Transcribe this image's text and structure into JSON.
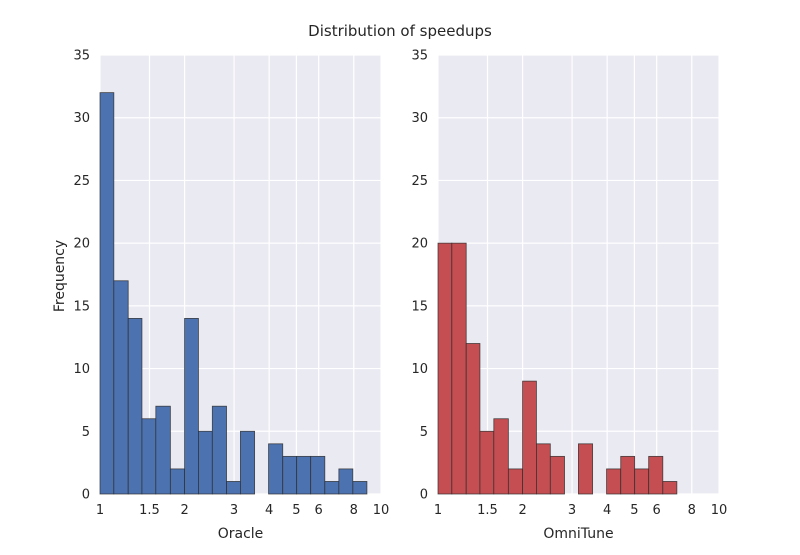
{
  "chart_data": {
    "type": "histogram",
    "title": "Distribution of speedups",
    "ylabel": "Frequency",
    "background": "#eaeaf2",
    "grid": true,
    "x_scale": "log",
    "xlim": [
      1,
      10
    ],
    "ylim": [
      0,
      35
    ],
    "y_ticks": [
      "0",
      "5",
      "10",
      "15",
      "20",
      "25",
      "30",
      "35"
    ],
    "x_ticks": [
      {
        "value": 1,
        "label": "1"
      },
      {
        "value": 1.5,
        "label": "1.5"
      },
      {
        "value": 2,
        "label": "2"
      },
      {
        "value": 3,
        "label": "3"
      },
      {
        "value": 4,
        "label": "4"
      },
      {
        "value": 5,
        "label": "5"
      },
      {
        "value": 6,
        "label": "6"
      },
      {
        "value": 8,
        "label": "8"
      },
      {
        "value": 10,
        "label": "10"
      }
    ],
    "panels": [
      {
        "xlabel": "Oracle",
        "color": "#4c72b0",
        "bins": [
          {
            "x0": 1.0,
            "x1": 1.12,
            "count": 32
          },
          {
            "x0": 1.12,
            "x1": 1.26,
            "count": 17
          },
          {
            "x0": 1.26,
            "x1": 1.41,
            "count": 14
          },
          {
            "x0": 1.41,
            "x1": 1.58,
            "count": 6
          },
          {
            "x0": 1.58,
            "x1": 1.78,
            "count": 7
          },
          {
            "x0": 1.78,
            "x1": 2.0,
            "count": 2
          },
          {
            "x0": 2.0,
            "x1": 2.24,
            "count": 14
          },
          {
            "x0": 2.24,
            "x1": 2.51,
            "count": 5
          },
          {
            "x0": 2.51,
            "x1": 2.82,
            "count": 7
          },
          {
            "x0": 2.82,
            "x1": 3.16,
            "count": 1
          },
          {
            "x0": 3.16,
            "x1": 3.55,
            "count": 5
          },
          {
            "x0": 3.98,
            "x1": 4.47,
            "count": 4
          },
          {
            "x0": 4.47,
            "x1": 5.01,
            "count": 3
          },
          {
            "x0": 5.01,
            "x1": 5.62,
            "count": 3
          },
          {
            "x0": 5.62,
            "x1": 6.31,
            "count": 3
          },
          {
            "x0": 6.31,
            "x1": 7.08,
            "count": 1
          },
          {
            "x0": 7.08,
            "x1": 7.94,
            "count": 2
          },
          {
            "x0": 7.94,
            "x1": 8.91,
            "count": 1
          }
        ]
      },
      {
        "xlabel": "OmniTune",
        "color": "#c44e52",
        "bins": [
          {
            "x0": 1.0,
            "x1": 1.12,
            "count": 20
          },
          {
            "x0": 1.12,
            "x1": 1.26,
            "count": 20
          },
          {
            "x0": 1.26,
            "x1": 1.41,
            "count": 12
          },
          {
            "x0": 1.41,
            "x1": 1.58,
            "count": 5
          },
          {
            "x0": 1.58,
            "x1": 1.78,
            "count": 6
          },
          {
            "x0": 1.78,
            "x1": 2.0,
            "count": 2
          },
          {
            "x0": 2.0,
            "x1": 2.24,
            "count": 9
          },
          {
            "x0": 2.24,
            "x1": 2.51,
            "count": 4
          },
          {
            "x0": 2.51,
            "x1": 2.82,
            "count": 3
          },
          {
            "x0": 3.16,
            "x1": 3.55,
            "count": 4
          },
          {
            "x0": 3.98,
            "x1": 4.47,
            "count": 2
          },
          {
            "x0": 4.47,
            "x1": 5.01,
            "count": 3
          },
          {
            "x0": 5.01,
            "x1": 5.62,
            "count": 2
          },
          {
            "x0": 5.62,
            "x1": 6.31,
            "count": 3
          },
          {
            "x0": 6.31,
            "x1": 7.08,
            "count": 1
          }
        ]
      }
    ]
  }
}
